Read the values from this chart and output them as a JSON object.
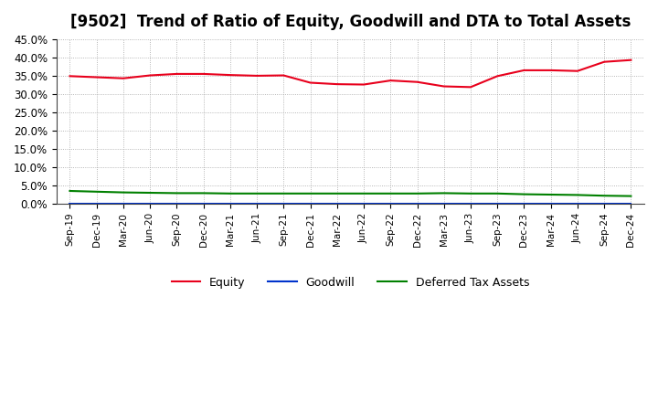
{
  "title": "[9502]  Trend of Ratio of Equity, Goodwill and DTA to Total Assets",
  "x_labels": [
    "Sep-19",
    "Dec-19",
    "Mar-20",
    "Jun-20",
    "Sep-20",
    "Dec-20",
    "Mar-21",
    "Jun-21",
    "Sep-21",
    "Dec-21",
    "Mar-22",
    "Jun-22",
    "Sep-22",
    "Dec-22",
    "Mar-23",
    "Jun-23",
    "Sep-23",
    "Dec-23",
    "Mar-24",
    "Jun-24",
    "Sep-24",
    "Dec-24"
  ],
  "equity": [
    34.9,
    34.6,
    34.3,
    35.1,
    35.5,
    35.5,
    35.2,
    35.0,
    35.1,
    33.1,
    32.7,
    32.6,
    33.7,
    33.3,
    32.1,
    31.9,
    34.9,
    36.5,
    36.5,
    36.3,
    38.8,
    39.3
  ],
  "goodwill": [
    0.0,
    0.0,
    0.0,
    0.0,
    0.0,
    0.0,
    0.0,
    0.0,
    0.0,
    0.0,
    0.0,
    0.0,
    0.0,
    0.0,
    0.0,
    0.0,
    0.0,
    0.0,
    0.0,
    0.0,
    0.0,
    0.0
  ],
  "dta": [
    3.5,
    3.3,
    3.1,
    3.0,
    2.9,
    2.9,
    2.8,
    2.8,
    2.8,
    2.8,
    2.8,
    2.8,
    2.8,
    2.8,
    2.9,
    2.8,
    2.8,
    2.6,
    2.5,
    2.4,
    2.2,
    2.1
  ],
  "equity_color": "#e8001c",
  "goodwill_color": "#0033cc",
  "dta_color": "#008000",
  "ylim": [
    0,
    45
  ],
  "yticks": [
    0,
    5,
    10,
    15,
    20,
    25,
    30,
    35,
    40,
    45
  ],
  "background_color": "#ffffff",
  "plot_bg_color": "#ffffff",
  "grid_color": "#999999",
  "title_fontsize": 12,
  "legend_labels": [
    "Equity",
    "Goodwill",
    "Deferred Tax Assets"
  ]
}
